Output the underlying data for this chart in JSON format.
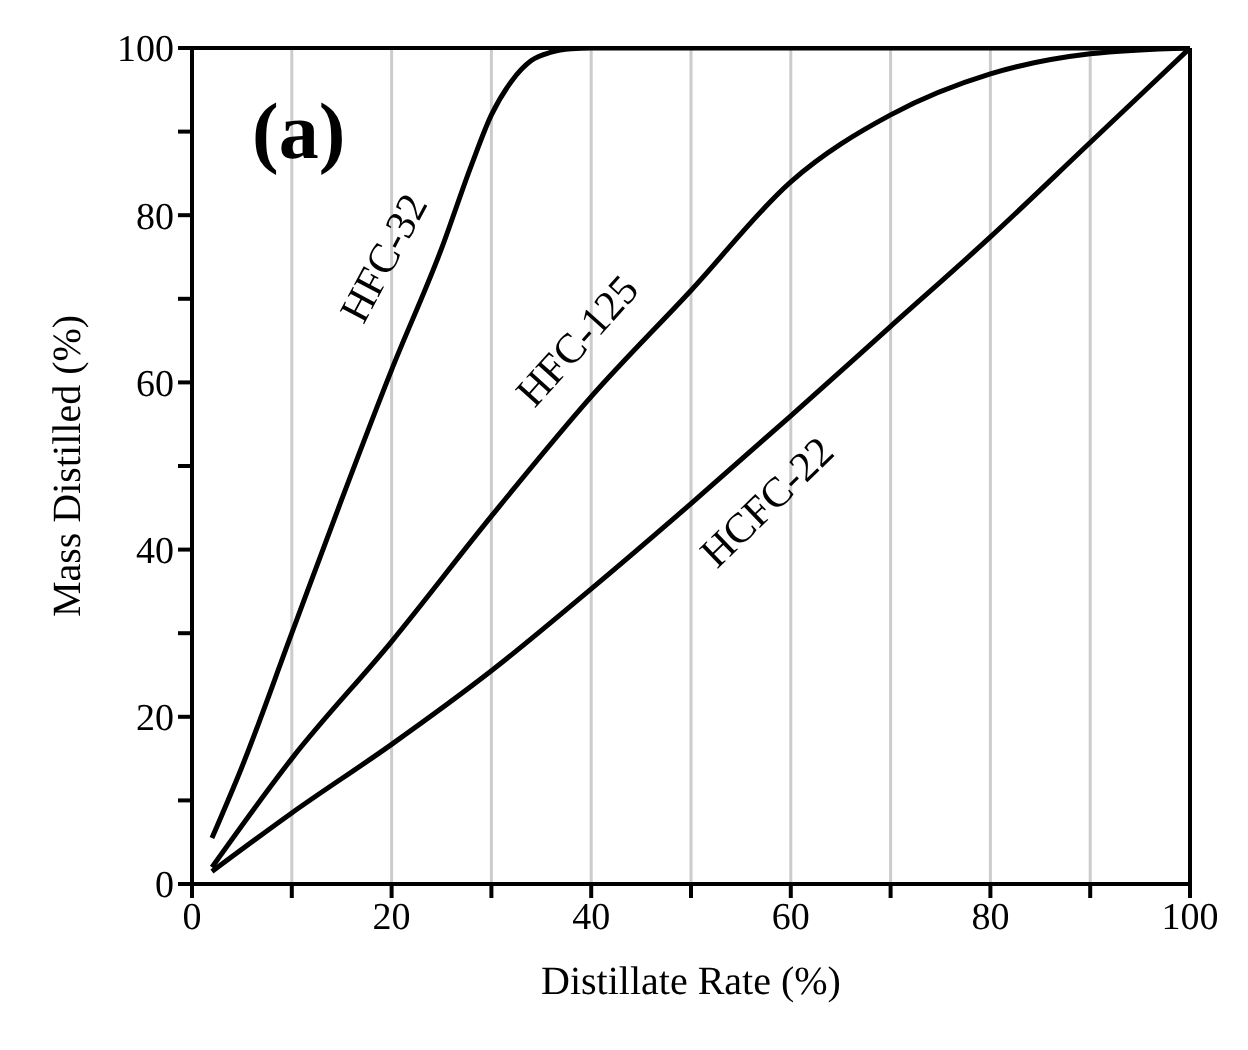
{
  "chart_data": {
    "type": "line",
    "xlabel": "Distillate Rate (%)",
    "ylabel": "Mass Distilled  (%)",
    "xlim": [
      0,
      100
    ],
    "ylim": [
      0,
      100
    ],
    "xticks": [
      0,
      {
        "value": 10,
        "label": null
      },
      20,
      {
        "value": 30,
        "label": null
      },
      40,
      {
        "value": 50,
        "label": null
      },
      60,
      {
        "value": 70,
        "label": null
      },
      80,
      {
        "value": 90,
        "label": null
      },
      100
    ],
    "yticks": [
      0,
      {
        "value": 10,
        "label": null
      },
      20,
      {
        "value": 30,
        "label": null
      },
      40,
      {
        "value": 50,
        "label": null
      },
      60,
      {
        "value": 70,
        "label": null
      },
      80,
      {
        "value": 90,
        "label": null
      },
      100
    ],
    "grid": "x",
    "marker": "none",
    "line_style": "solid",
    "series": [
      {
        "name": "HFC-32",
        "color": "#000000",
        "x": [
          2,
          5,
          10,
          15,
          20,
          25,
          28,
          30,
          32,
          34,
          36,
          38,
          40,
          50,
          60,
          70,
          80,
          90,
          100
        ],
        "values": [
          5.5,
          14,
          30,
          46,
          61.5,
          76,
          86,
          92,
          96,
          98.5,
          99.5,
          99.9,
          100,
          100,
          100,
          100,
          100,
          100,
          100
        ]
      },
      {
        "name": "HFC-125",
        "color": "#000000",
        "x": [
          2,
          10,
          20,
          30,
          40,
          50,
          60,
          70,
          80,
          90,
          100
        ],
        "values": [
          2,
          15,
          29,
          44,
          58.3,
          71,
          84,
          92,
          96.9,
          99.3,
          100
        ]
      },
      {
        "name": "HCFC-22",
        "color": "#000000",
        "x": [
          2,
          10,
          20,
          30,
          40,
          50,
          60,
          70,
          80,
          90,
          100
        ],
        "values": [
          1.5,
          8.5,
          16.7,
          25.5,
          35.3,
          45.5,
          56,
          66.7,
          77.4,
          88.7,
          100
        ]
      }
    ],
    "annotations": [
      "(a)"
    ]
  }
}
